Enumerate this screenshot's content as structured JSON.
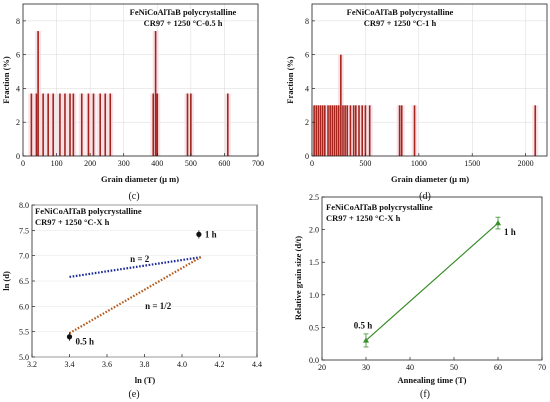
{
  "chart_data": [
    {
      "id": "c",
      "type": "bar",
      "caption": "(c)",
      "title": [
        "FeNiCoAlTaB polycrystalline",
        "CR97 + 1250 °C-0.5 h"
      ],
      "xlabel": "Grain diameter (μ m)",
      "ylabel": "Fraction (%)",
      "xlim": [
        0,
        700
      ],
      "ylim": [
        0,
        9
      ],
      "xticks": [
        "0",
        "100",
        "200",
        "300",
        "400",
        "500",
        "600",
        "700"
      ],
      "yticks": [
        "0",
        "2",
        "4",
        "6",
        "8"
      ],
      "bars": [
        {
          "x": 25,
          "y": 3.7
        },
        {
          "x": 40,
          "y": 3.7
        },
        {
          "x": 45,
          "y": 7.4
        },
        {
          "x": 60,
          "y": 3.7
        },
        {
          "x": 75,
          "y": 3.7
        },
        {
          "x": 90,
          "y": 3.7
        },
        {
          "x": 110,
          "y": 3.7
        },
        {
          "x": 125,
          "y": 3.7
        },
        {
          "x": 140,
          "y": 3.7
        },
        {
          "x": 150,
          "y": 3.7
        },
        {
          "x": 175,
          "y": 3.7
        },
        {
          "x": 195,
          "y": 3.7
        },
        {
          "x": 210,
          "y": 3.7
        },
        {
          "x": 230,
          "y": 3.7
        },
        {
          "x": 245,
          "y": 3.7
        },
        {
          "x": 260,
          "y": 3.7
        },
        {
          "x": 388,
          "y": 3.7
        },
        {
          "x": 395,
          "y": 7.4
        },
        {
          "x": 400,
          "y": 3.7
        },
        {
          "x": 490,
          "y": 3.7
        },
        {
          "x": 500,
          "y": 3.7
        },
        {
          "x": 610,
          "y": 3.7
        }
      ]
    },
    {
      "id": "d",
      "type": "bar",
      "caption": "(d)",
      "title": [
        "FeNiCoAlTaB polycrystalline",
        "CR97 + 1250 °C-1 h"
      ],
      "xlabel": "Grain diameter (μ m)",
      "ylabel": "Fraction (%)",
      "xlim": [
        0,
        2200
      ],
      "ylim": [
        0,
        9
      ],
      "xticks": [
        "0",
        "500",
        "1000",
        "1500",
        "2000"
      ],
      "yticks": [
        "0",
        "2",
        "4",
        "6",
        "8"
      ],
      "bars": [
        {
          "x": 20,
          "y": 3
        },
        {
          "x": 40,
          "y": 3
        },
        {
          "x": 60,
          "y": 3
        },
        {
          "x": 80,
          "y": 3
        },
        {
          "x": 100,
          "y": 3
        },
        {
          "x": 120,
          "y": 3
        },
        {
          "x": 150,
          "y": 3
        },
        {
          "x": 170,
          "y": 3
        },
        {
          "x": 190,
          "y": 3
        },
        {
          "x": 210,
          "y": 3
        },
        {
          "x": 230,
          "y": 3
        },
        {
          "x": 250,
          "y": 3
        },
        {
          "x": 270,
          "y": 6
        },
        {
          "x": 290,
          "y": 3
        },
        {
          "x": 310,
          "y": 3
        },
        {
          "x": 330,
          "y": 3
        },
        {
          "x": 360,
          "y": 3
        },
        {
          "x": 390,
          "y": 3
        },
        {
          "x": 410,
          "y": 3
        },
        {
          "x": 440,
          "y": 3
        },
        {
          "x": 470,
          "y": 3
        },
        {
          "x": 500,
          "y": 3
        },
        {
          "x": 540,
          "y": 3
        },
        {
          "x": 820,
          "y": 3
        },
        {
          "x": 840,
          "y": 3
        },
        {
          "x": 960,
          "y": 3
        },
        {
          "x": 2090,
          "y": 3
        }
      ]
    },
    {
      "id": "e",
      "type": "scatter",
      "caption": "(e)",
      "title": [
        "FeNiCoAlTaB polycrystalline",
        "CR97 + 1250 °C-X h"
      ],
      "xlabel": "ln (T)",
      "ylabel": "ln (d)",
      "xlim": [
        3.2,
        4.4
      ],
      "ylim": [
        5.0,
        8.0
      ],
      "xticks": [
        "3.2",
        "3.4",
        "3.6",
        "3.8",
        "4.0",
        "4.2",
        "4.4"
      ],
      "yticks": [
        "5.0",
        "5.5",
        "6.0",
        "6.5",
        "7.0",
        "7.5",
        "8.0"
      ],
      "points": [
        {
          "x": 3.4,
          "y": 5.4,
          "err": 0.08,
          "label": "0.5 h"
        },
        {
          "x": 4.09,
          "y": 7.42,
          "err": 0.08,
          "label": "1 h"
        }
      ],
      "lines": [
        {
          "label": "n = 2",
          "from": [
            3.4,
            6.58
          ],
          "to": [
            4.1,
            6.97
          ],
          "color": "#1a2a9a"
        },
        {
          "label": "n = 1/2",
          "from": [
            3.4,
            5.47
          ],
          "to": [
            4.1,
            6.97
          ],
          "color": "#b35a1f"
        }
      ]
    },
    {
      "id": "f",
      "type": "line",
      "caption": "(f)",
      "title": [
        "FeNiCoAlTaB polycrystalline",
        "CR97 + 1250 °C-X h"
      ],
      "xlabel": "Annealing time (T)",
      "ylabel": "Relative grain size (d/t)",
      "xlim": [
        20,
        70
      ],
      "ylim": [
        0.0,
        2.5
      ],
      "xticks": [
        "20",
        "30",
        "40",
        "50",
        "60",
        "70"
      ],
      "yticks": [
        "0.0",
        "0.5",
        "1.0",
        "1.5",
        "2.0",
        "2.5"
      ],
      "points": [
        {
          "x": 30,
          "y": 0.3,
          "err": 0.1,
          "label": "0.5 h"
        },
        {
          "x": 60,
          "y": 2.1,
          "err": 0.09,
          "label": "1 h"
        }
      ]
    }
  ]
}
